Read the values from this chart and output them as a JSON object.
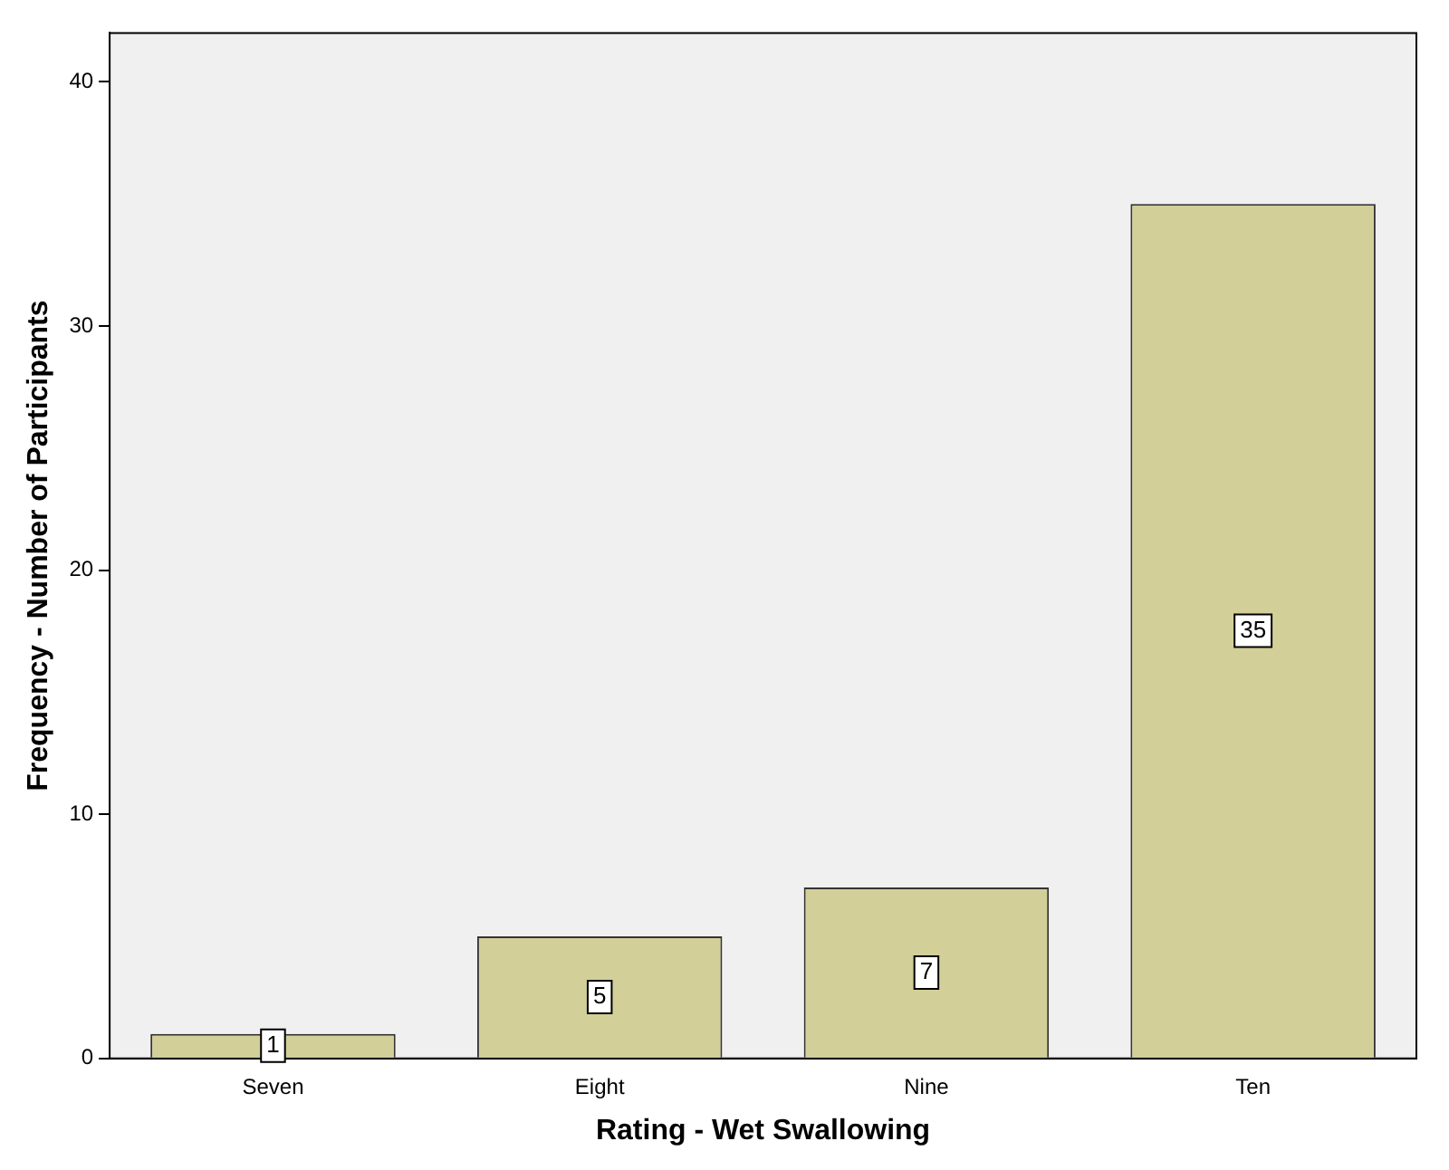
{
  "chart_data": {
    "type": "bar",
    "xlabel": "Rating - Wet Swallowing",
    "ylabel": "Frequency - Number of Participants",
    "categories": [
      "Seven",
      "Eight",
      "Nine",
      "Ten"
    ],
    "values": [
      1,
      5,
      7,
      35
    ],
    "color": "#d3cf98",
    "ylim": [
      0,
      42
    ],
    "yticks": [
      0,
      10,
      20,
      30,
      40
    ],
    "grid": false,
    "legend": false,
    "data_labels": true
  }
}
